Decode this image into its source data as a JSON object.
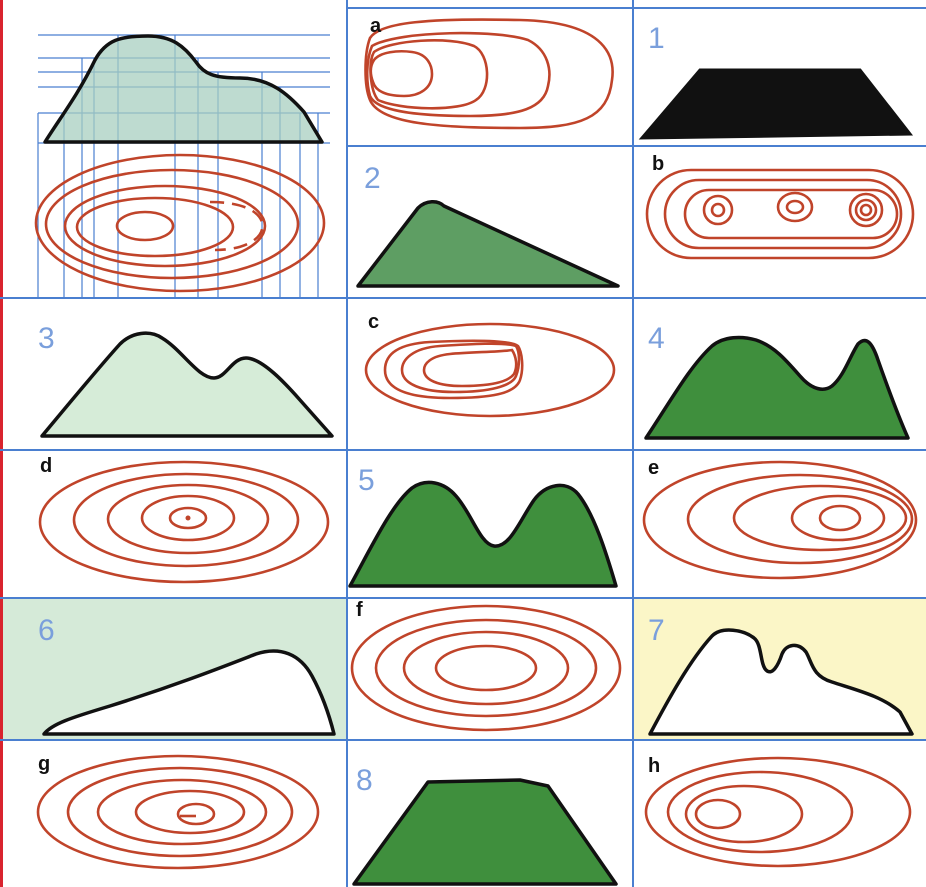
{
  "colors": {
    "grid": "#4a7fd0",
    "contour": "#c0442a",
    "outline": "#111111",
    "dark_green": "#3f8f3d",
    "mid_green": "#5e9e63",
    "light_green": "#d6ecd8",
    "pale_green_bg": "#d5ead8",
    "pale_yellow_bg": "#fbf6c7",
    "black_fill": "#111111",
    "white_fill": "#ffffff",
    "left_edge": "#d9232e"
  },
  "labels": {
    "letters": [
      "a",
      "b",
      "c",
      "d",
      "e",
      "f",
      "g",
      "h"
    ],
    "numbers": [
      "1",
      "2",
      "3",
      "4",
      "5",
      "6",
      "7",
      "8"
    ]
  },
  "cells": [
    {
      "id": "a",
      "kind": "contour",
      "label_ref": "labels.letters.0"
    },
    {
      "id": "1",
      "kind": "profile",
      "fill": "black_fill",
      "label_ref": "labels.numbers.0"
    },
    {
      "id": "2",
      "kind": "profile",
      "fill": "mid_green",
      "label_ref": "labels.numbers.1"
    },
    {
      "id": "b",
      "kind": "contour",
      "label_ref": "labels.letters.1"
    },
    {
      "id": "3",
      "kind": "profile",
      "fill": "light_green",
      "label_ref": "labels.numbers.2"
    },
    {
      "id": "c",
      "kind": "contour",
      "label_ref": "labels.letters.2"
    },
    {
      "id": "4",
      "kind": "profile",
      "fill": "dark_green",
      "label_ref": "labels.numbers.3"
    },
    {
      "id": "d",
      "kind": "contour",
      "label_ref": "labels.letters.3"
    },
    {
      "id": "5",
      "kind": "profile",
      "fill": "dark_green",
      "label_ref": "labels.numbers.4"
    },
    {
      "id": "e",
      "kind": "contour",
      "label_ref": "labels.letters.4"
    },
    {
      "id": "6",
      "kind": "profile",
      "fill": "white_fill",
      "background": "pale_green_bg",
      "label_ref": "labels.numbers.5"
    },
    {
      "id": "f",
      "kind": "contour",
      "label_ref": "labels.letters.5"
    },
    {
      "id": "7",
      "kind": "profile",
      "fill": "white_fill",
      "background": "pale_yellow_bg",
      "label_ref": "labels.numbers.6"
    },
    {
      "id": "g",
      "kind": "contour",
      "label_ref": "labels.letters.6"
    },
    {
      "id": "8",
      "kind": "profile",
      "fill": "dark_green",
      "label_ref": "labels.numbers.7"
    },
    {
      "id": "h",
      "kind": "contour",
      "label_ref": "labels.letters.7"
    }
  ]
}
